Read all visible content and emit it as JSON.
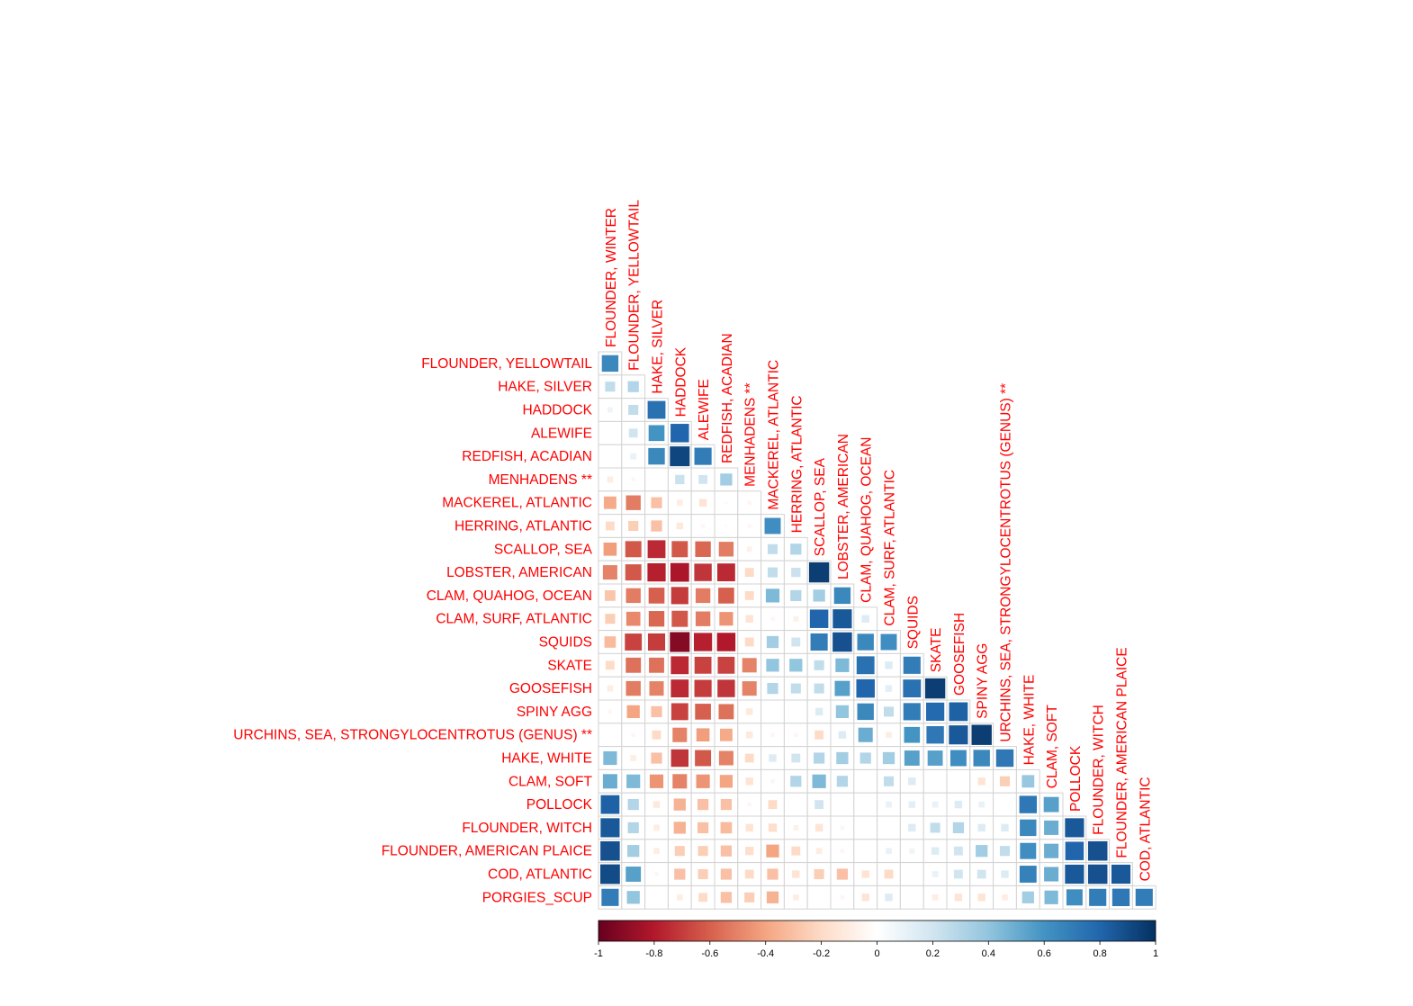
{
  "chart_data": {
    "type": "heatmap",
    "layout": "lower-triangle",
    "method": "square",
    "title": "",
    "variables": [
      "FLOUNDER, WINTER",
      "FLOUNDER, YELLOWTAIL",
      "HAKE, SILVER",
      "HADDOCK",
      "ALEWIFE",
      "REDFISH, ACADIAN",
      "MENHADENS **",
      "MACKEREL, ATLANTIC",
      "HERRING, ATLANTIC",
      "SCALLOP, SEA",
      "LOBSTER, AMERICAN",
      "CLAM, QUAHOG, OCEAN",
      "CLAM, SURF, ATLANTIC",
      "SQUIDS",
      "SKATE",
      "GOOSEFISH",
      "SPINY AGG",
      "URCHINS, SEA, STRONGYLOCENTROTUS (GENUS) **",
      "HAKE, WHITE",
      "CLAM, SOFT",
      "POLLOCK",
      "FLOUNDER, WITCH",
      "FLOUNDER, AMERICAN PLAICE",
      "COD, ATLANTIC",
      "PORGIES_SCUP"
    ],
    "row_labels": [
      "FLOUNDER, YELLOWTAIL",
      "HAKE, SILVER",
      "HADDOCK",
      "ALEWIFE",
      "REDFISH, ACADIAN",
      "MENHADENS **",
      "MACKEREL, ATLANTIC",
      "HERRING, ATLANTIC",
      "SCALLOP, SEA",
      "LOBSTER, AMERICAN",
      "CLAM, QUAHOG, OCEAN",
      "CLAM, SURF, ATLANTIC",
      "SQUIDS",
      "SKATE",
      "GOOSEFISH",
      "SPINY AGG",
      "URCHINS, SEA, STRONGYLOCENTROTUS (GENUS) **",
      "HAKE, WHITE",
      "CLAM, SOFT",
      "POLLOCK",
      "FLOUNDER, WITCH",
      "FLOUNDER, AMERICAN PLAICE",
      "COD, ATLANTIC",
      "PORGIES_SCUP"
    ],
    "col_labels": [
      "FLOUNDER, WINTER",
      "FLOUNDER, YELLOWTAIL",
      "HAKE, SILVER",
      "HADDOCK",
      "ALEWIFE",
      "REDFISH, ACADIAN",
      "MENHADENS **",
      "MACKEREL, ATLANTIC",
      "HERRING, ATLANTIC",
      "SCALLOP, SEA",
      "LOBSTER, AMERICAN",
      "CLAM, QUAHOG, OCEAN",
      "CLAM, SURF, ATLANTIC",
      "SQUIDS",
      "SKATE",
      "GOOSEFISH",
      "SPINY AGG",
      "URCHINS, SEA, STRONGYLOCENTROTUS (GENUS) **",
      "HAKE, WHITE",
      "CLAM, SOFT",
      "POLLOCK",
      "FLOUNDER, WITCH",
      "FLOUNDER, AMERICAN PLAICE",
      "COD, ATLANTIC"
    ],
    "values": [
      [
        0.65
      ],
      [
        0.25,
        0.3
      ],
      [
        0.08,
        0.25,
        0.75
      ],
      [
        0.0,
        0.2,
        0.6,
        0.8
      ],
      [
        0.0,
        0.1,
        0.65,
        0.92,
        0.7
      ],
      [
        -0.1,
        -0.05,
        0.0,
        0.22,
        0.2,
        0.35
      ],
      [
        -0.38,
        -0.52,
        -0.3,
        -0.1,
        -0.15,
        -0.03,
        -0.05
      ],
      [
        -0.2,
        -0.25,
        -0.3,
        -0.12,
        -0.05,
        -0.03,
        -0.05,
        0.62
      ],
      [
        -0.42,
        -0.62,
        -0.75,
        -0.62,
        -0.58,
        -0.52,
        -0.08,
        0.25,
        0.3
      ],
      [
        -0.5,
        -0.62,
        -0.78,
        -0.82,
        -0.72,
        -0.75,
        -0.2,
        0.25,
        0.22,
        0.95
      ],
      [
        -0.28,
        -0.52,
        -0.6,
        -0.7,
        -0.52,
        -0.6,
        -0.2,
        0.45,
        0.3,
        0.35,
        0.65
      ],
      [
        -0.25,
        -0.48,
        -0.58,
        -0.62,
        -0.52,
        -0.45,
        -0.15,
        -0.05,
        -0.08,
        0.8,
        0.85,
        0.15
      ],
      [
        -0.32,
        -0.68,
        -0.7,
        -0.92,
        -0.78,
        -0.8,
        -0.2,
        0.35,
        0.2,
        0.7,
        0.88,
        0.65,
        0.62
      ],
      [
        -0.2,
        -0.55,
        -0.55,
        -0.75,
        -0.68,
        -0.68,
        -0.5,
        0.4,
        0.4,
        0.25,
        0.45,
        0.75,
        0.15,
        0.7
      ],
      [
        -0.1,
        -0.52,
        -0.5,
        -0.75,
        -0.7,
        -0.72,
        -0.5,
        0.3,
        0.25,
        0.25,
        0.55,
        0.8,
        0.12,
        0.75,
        0.95
      ],
      [
        -0.05,
        -0.4,
        -0.3,
        -0.68,
        -0.6,
        -0.55,
        -0.12,
        0.0,
        0.0,
        0.15,
        0.4,
        0.65,
        0.25,
        0.7,
        0.78,
        0.82
      ],
      [
        0.0,
        -0.05,
        -0.2,
        -0.5,
        -0.42,
        -0.38,
        -0.12,
        -0.05,
        -0.05,
        -0.2,
        0.15,
        0.5,
        -0.1,
        0.6,
        0.72,
        0.85,
        0.95
      ],
      [
        0.45,
        -0.1,
        -0.3,
        -0.72,
        -0.62,
        -0.5,
        -0.2,
        0.15,
        0.2,
        0.3,
        0.35,
        0.3,
        0.35,
        0.55,
        0.55,
        0.62,
        0.65,
        0.72
      ],
      [
        0.5,
        0.45,
        -0.45,
        -0.5,
        -0.45,
        -0.4,
        -0.15,
        0.05,
        0.3,
        0.45,
        0.3,
        0.0,
        0.25,
        0.15,
        0.0,
        0.0,
        -0.15,
        -0.25,
        0.38
      ],
      [
        0.82,
        0.3,
        -0.12,
        -0.35,
        -0.3,
        -0.3,
        -0.05,
        -0.2,
        0.0,
        0.2,
        0.0,
        0.0,
        0.1,
        0.12,
        0.1,
        0.15,
        0.1,
        0.0,
        0.72,
        0.55
      ],
      [
        0.85,
        0.3,
        -0.1,
        -0.35,
        -0.3,
        -0.32,
        -0.15,
        -0.18,
        -0.08,
        -0.15,
        -0.05,
        0.0,
        0.0,
        0.15,
        0.25,
        0.3,
        0.15,
        0.15,
        0.65,
        0.5,
        0.85
      ],
      [
        0.88,
        0.35,
        -0.1,
        -0.25,
        -0.25,
        -0.3,
        -0.18,
        -0.4,
        -0.2,
        -0.1,
        -0.05,
        0.0,
        0.1,
        0.08,
        0.15,
        0.2,
        0.35,
        0.25,
        0.62,
        0.5,
        0.8,
        0.88
      ],
      [
        0.9,
        0.55,
        -0.05,
        -0.3,
        -0.25,
        -0.3,
        -0.2,
        -0.3,
        -0.15,
        -0.25,
        -0.3,
        -0.15,
        -0.2,
        0.0,
        0.1,
        0.2,
        0.2,
        0.15,
        0.68,
        0.5,
        0.85,
        0.88,
        0.85
      ],
      [
        0.7,
        0.4,
        0.0,
        -0.1,
        -0.2,
        -0.3,
        -0.25,
        -0.35,
        -0.1,
        0.0,
        -0.05,
        -0.15,
        0.15,
        0.0,
        -0.1,
        -0.15,
        -0.15,
        -0.1,
        0.35,
        0.45,
        0.62,
        0.7,
        0.72,
        0.7
      ]
    ],
    "colorbar": {
      "range": [
        -1,
        1
      ],
      "ticks": [
        "-1",
        "-0.8",
        "-0.6",
        "-0.4",
        "-0.2",
        "0",
        "0.2",
        "0.4",
        "0.6",
        "0.8",
        "1"
      ],
      "colors": [
        "#67001f",
        "#b2182b",
        "#d6604d",
        "#f4a582",
        "#fddbc7",
        "#ffffff",
        "#d1e5f0",
        "#92c5de",
        "#4393c3",
        "#2166ac",
        "#053061"
      ]
    },
    "legend_position": "bottom",
    "label_color": "#ff0000",
    "grid": true
  }
}
